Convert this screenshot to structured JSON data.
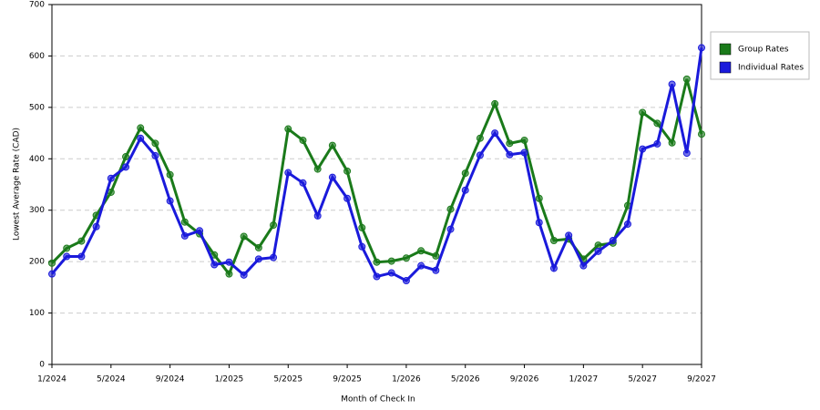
{
  "chart_data": {
    "type": "line",
    "x_label": "Month of Check In",
    "y_label": "Lowest Average Rate (CAD)",
    "categories": [
      "1/2024",
      null,
      null,
      null,
      "5/2024",
      null,
      null,
      null,
      "9/2024",
      null,
      null,
      null,
      "1/2025",
      null,
      null,
      null,
      "5/2025",
      null,
      null,
      null,
      "9/2025",
      null,
      null,
      null,
      "1/2026",
      null,
      null,
      null,
      "5/2026",
      null,
      null,
      null,
      "9/2026",
      null,
      null,
      null,
      "1/2027",
      null,
      null,
      null,
      "5/2027",
      null,
      null,
      null,
      "9/2027"
    ],
    "series": [
      {
        "name": "Group Rates",
        "color": "#1a7a1a",
        "values": [
          197,
          226,
          240,
          290,
          335,
          404,
          460,
          430,
          369,
          277,
          254,
          213,
          176,
          249,
          227,
          271,
          458,
          436,
          380,
          426,
          376,
          266,
          199,
          201,
          207,
          221,
          211,
          302,
          372,
          440,
          507,
          430,
          436,
          323,
          241,
          244,
          205,
          232,
          236,
          309,
          490,
          469,
          431,
          555,
          448
        ]
      },
      {
        "name": "Individual Rates",
        "color": "#1a1adb",
        "values": [
          176,
          210,
          210,
          268,
          362,
          384,
          440,
          406,
          318,
          250,
          260,
          194,
          199,
          174,
          205,
          208,
          373,
          353,
          289,
          364,
          323,
          229,
          171,
          178,
          163,
          192,
          183,
          263,
          339,
          407,
          450,
          408,
          412,
          276,
          187,
          251,
          192,
          220,
          241,
          273,
          419,
          429,
          545,
          411,
          616
        ]
      }
    ],
    "ylim": [
      0,
      700
    ],
    "yticks": [
      0,
      100,
      200,
      300,
      400,
      500,
      600,
      700
    ],
    "grid": true,
    "legend": "right"
  }
}
